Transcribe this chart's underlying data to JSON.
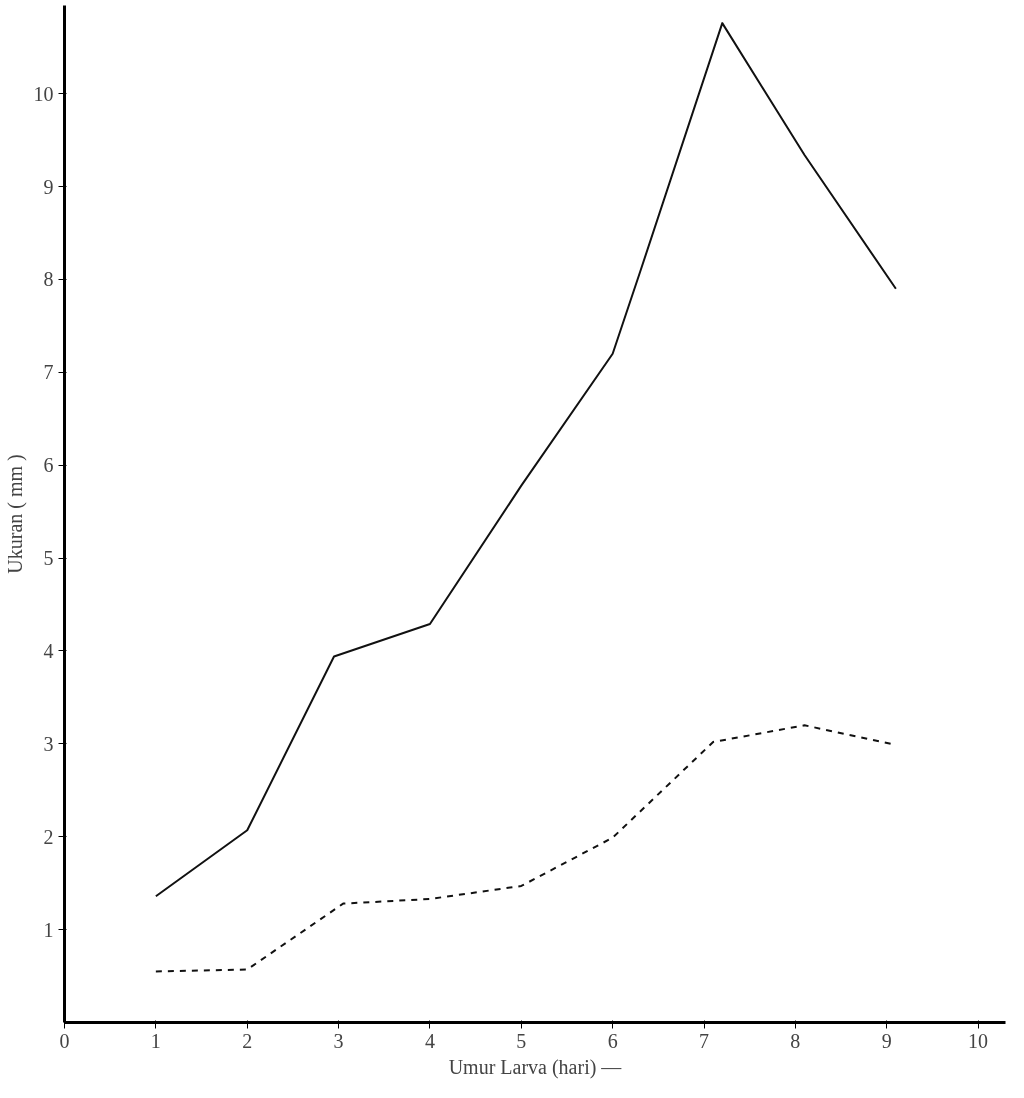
{
  "chart_data": {
    "type": "line",
    "xlabel": "Umur Larva (hari) —",
    "ylabel": "Ukuran ( mm )",
    "xlim": [
      0,
      10.3
    ],
    "ylim": [
      0,
      10.95
    ],
    "xticks": [
      0,
      1,
      2,
      3,
      4,
      5,
      6,
      7,
      8,
      9,
      10
    ],
    "yticks": [
      1,
      2,
      3,
      4,
      5,
      6,
      7,
      8,
      9,
      10
    ],
    "grid": false,
    "series": [
      {
        "color": "#111111",
        "line_style": "solid",
        "x": [
          1,
          2,
          2.95,
          4,
          5,
          6,
          6.3,
          7.2,
          8.1,
          9.1
        ],
        "values": [
          1.36,
          2.07,
          3.94,
          4.29,
          5.78,
          7.2,
          8.08,
          10.76,
          9.34,
          7.9
        ]
      },
      {
        "color": "#111111",
        "line_style": "dashed",
        "x": [
          1,
          2,
          3.05,
          4,
          5,
          6,
          7.1,
          8.1,
          9.1
        ],
        "values": [
          0.55,
          0.57,
          1.28,
          1.33,
          1.47,
          1.99,
          3.02,
          3.2,
          2.99
        ]
      }
    ]
  }
}
